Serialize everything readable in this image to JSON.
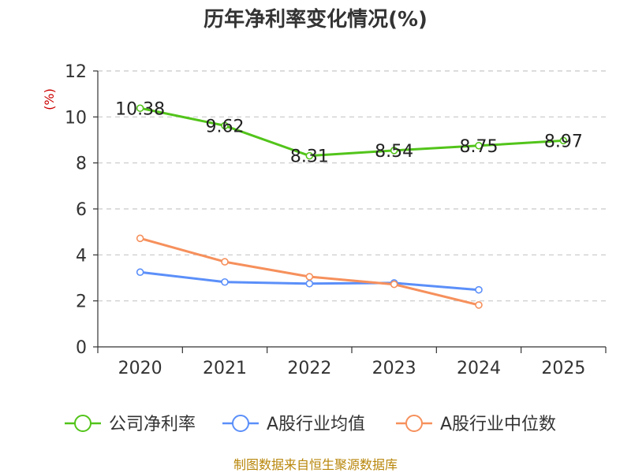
{
  "chart_data": {
    "type": "line",
    "title": "历年净利率变化情况(%)",
    "unit_label": "(%)",
    "categories": [
      "2020",
      "2021",
      "2022",
      "2023",
      "2024",
      "2025"
    ],
    "ylim": [
      0,
      12
    ],
    "yticks": [
      0,
      2,
      4,
      6,
      8,
      10,
      12
    ],
    "grid": true,
    "legend_position": "bottom",
    "series": [
      {
        "name": "公司净利率",
        "color": "#52c41a",
        "values": [
          10.38,
          9.62,
          8.31,
          8.54,
          8.75,
          8.97
        ],
        "labels": [
          "10.38",
          "9.62",
          "8.31",
          "8.54",
          "8.75",
          "8.97"
        ],
        "show_labels": true
      },
      {
        "name": "A股行业均值",
        "color": "#5b8ff9",
        "values": [
          3.25,
          2.82,
          2.75,
          2.78,
          2.48,
          null
        ],
        "show_labels": false
      },
      {
        "name": "A股行业中位数",
        "color": "#f6905c",
        "values": [
          4.72,
          3.7,
          3.05,
          2.72,
          1.82,
          null
        ],
        "show_labels": false
      }
    ]
  },
  "footer": {
    "source": "制图数据来自恒生聚源数据库"
  }
}
